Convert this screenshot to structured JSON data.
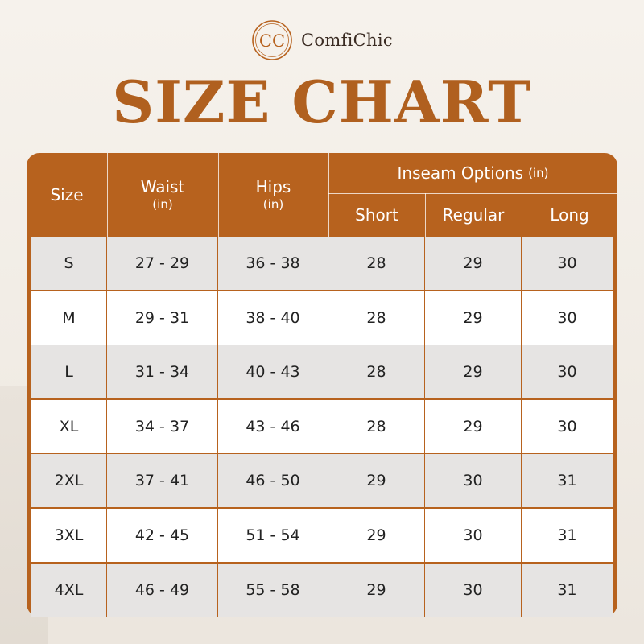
{
  "brand": {
    "logo_letters": "CC",
    "name": "ComfiChic"
  },
  "title": "SIZE CHART",
  "colors": {
    "accent": "#b7621e",
    "title": "#b0601f",
    "row_shaded": "#e6e4e3",
    "row_plain": "#ffffff"
  },
  "table": {
    "headers": {
      "size": "Size",
      "waist": "Waist",
      "waist_unit": "(in)",
      "hips": "Hips",
      "hips_unit": "(in)",
      "inseam": "Inseam Options",
      "inseam_unit": "(in)",
      "short": "Short",
      "regular": "Regular",
      "long": "Long"
    },
    "rows": [
      {
        "size": "S",
        "waist": "27 - 29",
        "hips": "36 - 38",
        "short": "28",
        "regular": "29",
        "long": "30"
      },
      {
        "size": "M",
        "waist": "29 - 31",
        "hips": "38 - 40",
        "short": "28",
        "regular": "29",
        "long": "30"
      },
      {
        "size": "L",
        "waist": "31 - 34",
        "hips": "40 - 43",
        "short": "28",
        "regular": "29",
        "long": "30"
      },
      {
        "size": "XL",
        "waist": "34 - 37",
        "hips": "43 - 46",
        "short": "28",
        "regular": "29",
        "long": "30"
      },
      {
        "size": "2XL",
        "waist": "37 - 41",
        "hips": "46 - 50",
        "short": "29",
        "regular": "30",
        "long": "31"
      },
      {
        "size": "3XL",
        "waist": "42 - 45",
        "hips": "51 - 54",
        "short": "29",
        "regular": "30",
        "long": "31"
      },
      {
        "size": "4XL",
        "waist": "46 - 49",
        "hips": "55 - 58",
        "short": "29",
        "regular": "30",
        "long": "31"
      }
    ]
  }
}
